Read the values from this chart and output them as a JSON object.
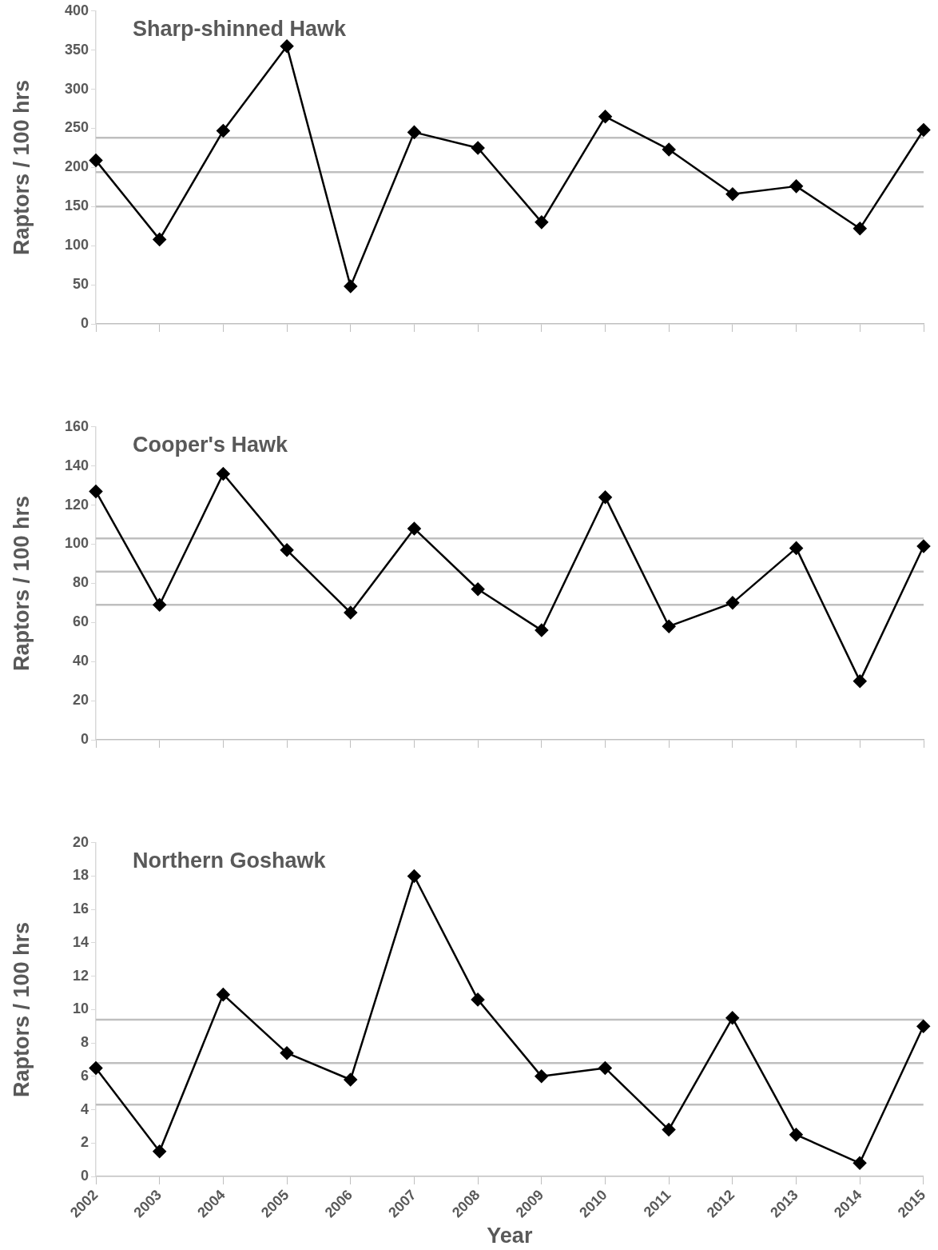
{
  "chart_data": [
    {
      "type": "line",
      "title": "Sharp-shinned Hawk",
      "ylabel": "Raptors / 100 hrs",
      "categories": [
        "2002",
        "2003",
        "2004",
        "2005",
        "2006",
        "2007",
        "2008",
        "2009",
        "2010",
        "2011",
        "2012",
        "2013",
        "2014",
        "2015"
      ],
      "series": [
        {
          "color": "#000000",
          "values": [
            209,
            108,
            247,
            355,
            48,
            245,
            225,
            130,
            265,
            223,
            166,
            176,
            122,
            248
          ]
        }
      ],
      "ylim": [
        0,
        400
      ],
      "yticks": [
        0,
        50,
        100,
        150,
        200,
        250,
        300,
        350,
        400
      ],
      "tick_labels": "y",
      "marker": "diamond",
      "line_style": "solid",
      "legend": false,
      "grid": false,
      "ref_lines": [
        {
          "axis": "y",
          "value": 238,
          "color": "#bfbfbf"
        },
        {
          "axis": "y",
          "value": 194,
          "color": "#bfbfbf"
        },
        {
          "axis": "y",
          "value": 150,
          "color": "#bfbfbf"
        }
      ]
    },
    {
      "type": "line",
      "title": "Cooper's Hawk",
      "ylabel": "Raptors / 100 hrs",
      "categories": [
        "2002",
        "2003",
        "2004",
        "2005",
        "2006",
        "2007",
        "2008",
        "2009",
        "2010",
        "2011",
        "2012",
        "2013",
        "2014",
        "2015"
      ],
      "series": [
        {
          "color": "#000000",
          "values": [
            127,
            69,
            136,
            97,
            65,
            108,
            77,
            56,
            124,
            58,
            70,
            98,
            30,
            99
          ]
        }
      ],
      "ylim": [
        0,
        160
      ],
      "yticks": [
        0,
        20,
        40,
        60,
        80,
        100,
        120,
        140,
        160
      ],
      "tick_labels": "y",
      "marker": "diamond",
      "line_style": "solid",
      "legend": false,
      "grid": false,
      "ref_lines": [
        {
          "axis": "y",
          "value": 103,
          "color": "#bfbfbf"
        },
        {
          "axis": "y",
          "value": 86,
          "color": "#bfbfbf"
        },
        {
          "axis": "y",
          "value": 69,
          "color": "#bfbfbf"
        }
      ]
    },
    {
      "type": "line",
      "title": "Northern Goshawk",
      "xlabel": "Year",
      "ylabel": "Raptors / 100 hrs",
      "categories": [
        "2002",
        "2003",
        "2004",
        "2005",
        "2006",
        "2007",
        "2008",
        "2009",
        "2010",
        "2011",
        "2012",
        "2013",
        "2014",
        "2015"
      ],
      "series": [
        {
          "color": "#000000",
          "values": [
            6.5,
            1.5,
            10.9,
            7.4,
            5.8,
            18,
            10.6,
            6,
            6.5,
            2.8,
            9.5,
            2.5,
            0.8,
            9
          ]
        }
      ],
      "ylim": [
        0,
        20
      ],
      "yticks": [
        0,
        2,
        4,
        6,
        8,
        10,
        12,
        14,
        16,
        18,
        20
      ],
      "marker": "diamond",
      "line_style": "solid",
      "legend": false,
      "grid": false,
      "ref_lines": [
        {
          "axis": "y",
          "value": 9.4,
          "color": "#bfbfbf"
        },
        {
          "axis": "y",
          "value": 6.8,
          "color": "#bfbfbf"
        },
        {
          "axis": "y",
          "value": 4.3,
          "color": "#bfbfbf"
        }
      ]
    }
  ]
}
